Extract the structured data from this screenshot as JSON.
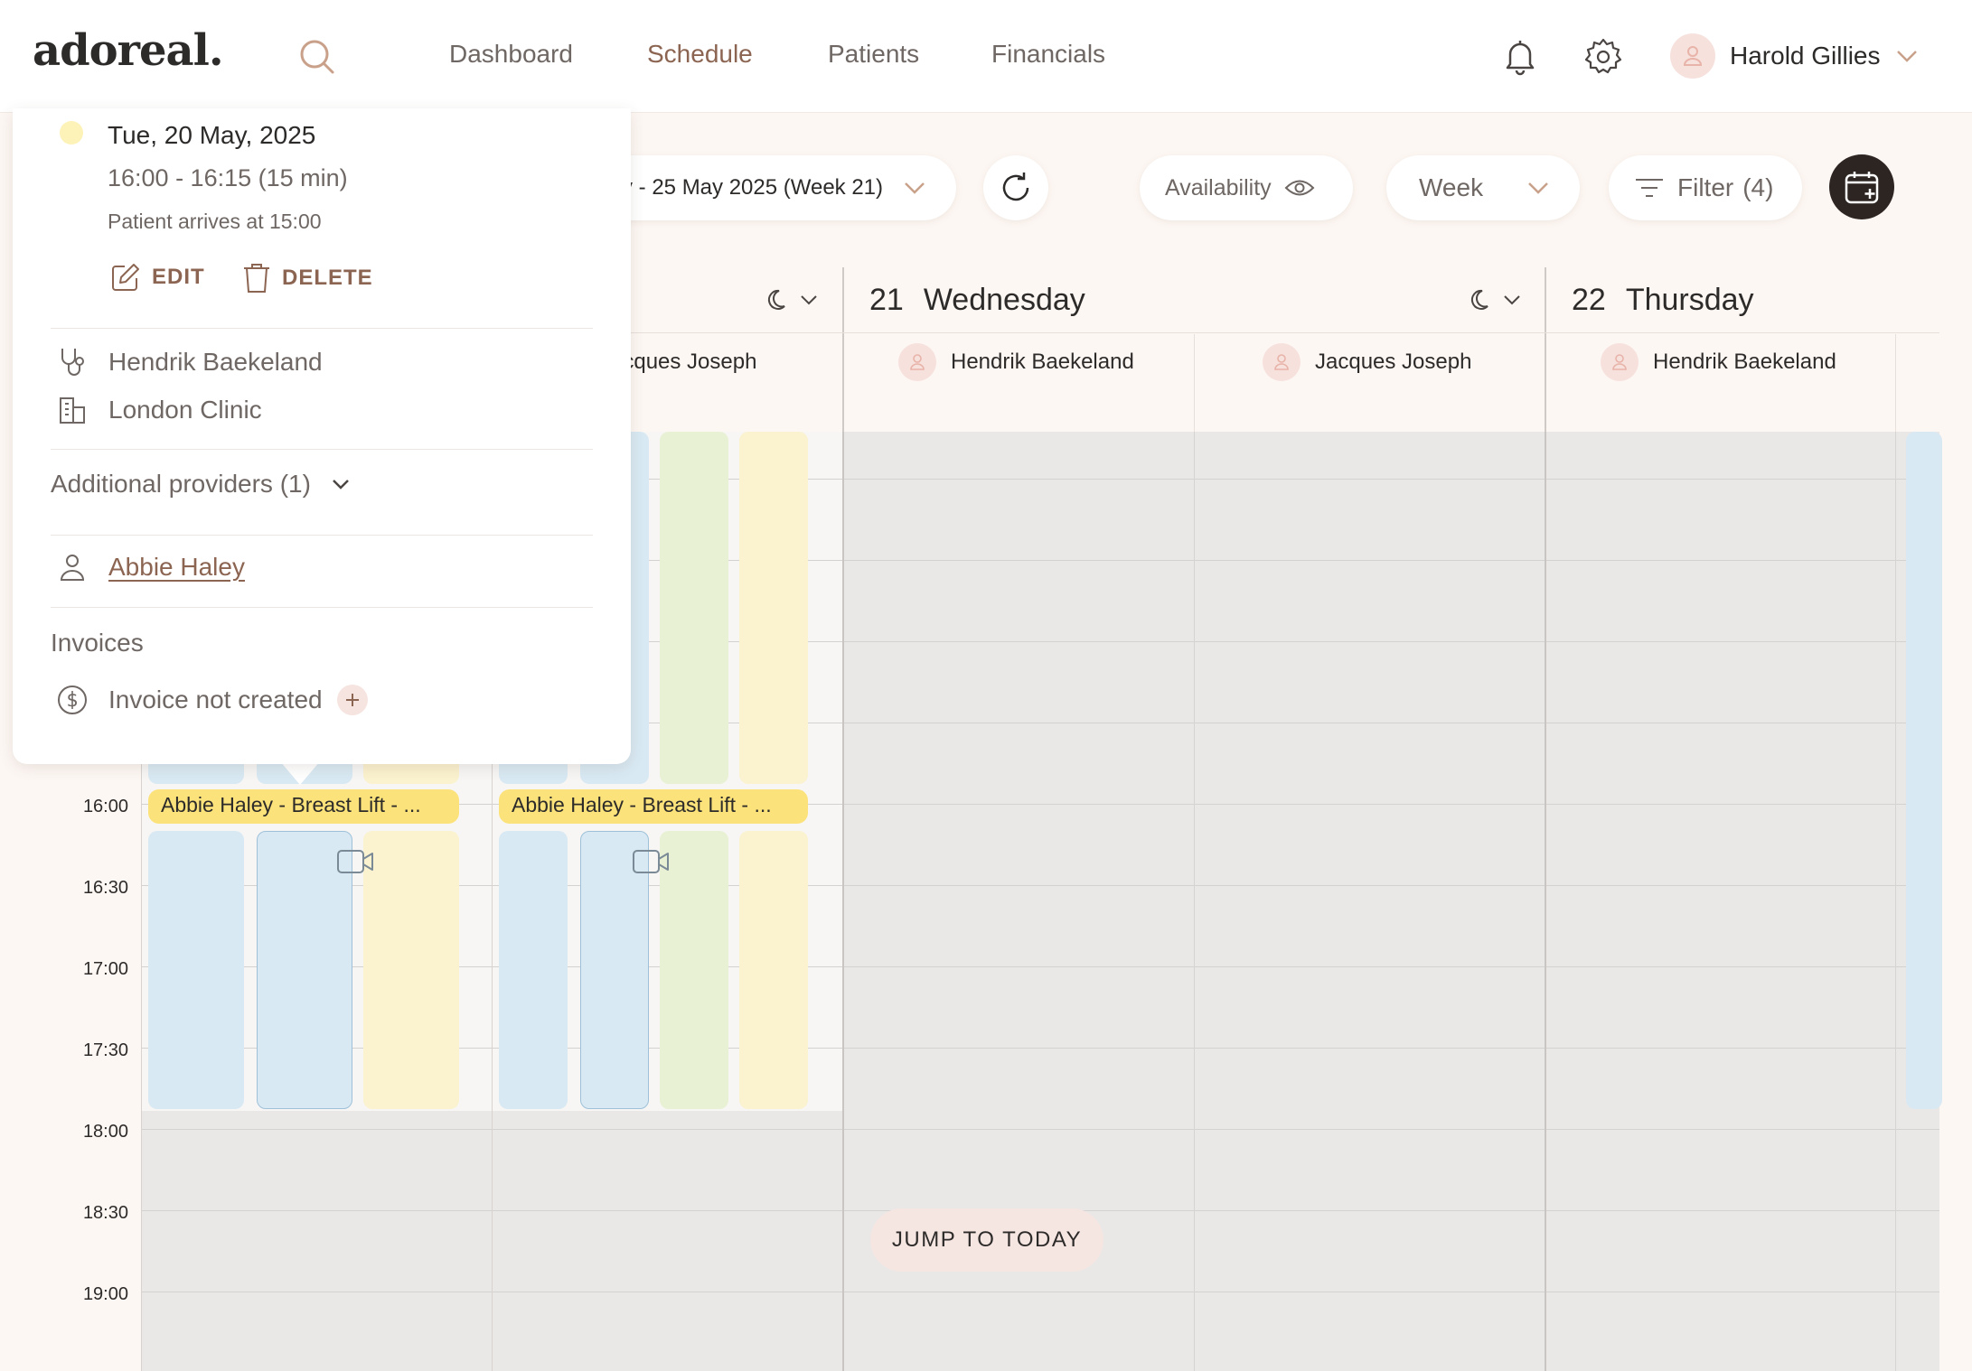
{
  "app": {
    "logo": "adoreal."
  },
  "nav": {
    "items": [
      "Dashboard",
      "Schedule",
      "Patients",
      "Financials"
    ],
    "active": "Schedule"
  },
  "user": {
    "name": "Harold Gillies"
  },
  "toolbar": {
    "date_range": "y - 25 May 2025 (Week 21)",
    "availability_label": "Availability",
    "view_label": "Week",
    "filter_label": "Filter",
    "filter_count": "(4)"
  },
  "calendar": {
    "days": [
      {
        "num": "21",
        "name": "Wednesday"
      },
      {
        "num": "22",
        "name": "Thursday"
      }
    ],
    "providers": [
      {
        "name": "acques Joseph"
      },
      {
        "name": "Hendrik Baekeland"
      },
      {
        "name": "Jacques Joseph"
      },
      {
        "name": "Hendrik Baekeland"
      }
    ],
    "times": [
      "16:00",
      "16:30",
      "17:00",
      "17:30",
      "18:00",
      "18:30",
      "19:00"
    ],
    "appointments": [
      {
        "label": "Abbie Haley - Breast Lift - ..."
      },
      {
        "label": "Abbie Haley - Breast Lift - ..."
      }
    ],
    "jump_label": "JUMP TO TODAY"
  },
  "popover": {
    "date": "Tue, 20 May, 2025",
    "time": "16:00 - 16:15 (15 min)",
    "arrival": "Patient arrives at 15:00",
    "edit_label": "EDIT",
    "delete_label": "DELETE",
    "provider": "Hendrik Baekeland",
    "location": "London Clinic",
    "additional_providers": "Additional providers (1)",
    "patient": "Abbie Haley",
    "invoices_heading": "Invoices",
    "invoice_status": "Invoice not created"
  },
  "colors": {
    "accent": "#8c6552",
    "appointment": "#fbe27a",
    "slot_blue": "#d9e9f3",
    "slot_green": "#e8f1d4",
    "slot_yellow": "#fbf2cf",
    "status_dot": "#fdf2b8"
  }
}
